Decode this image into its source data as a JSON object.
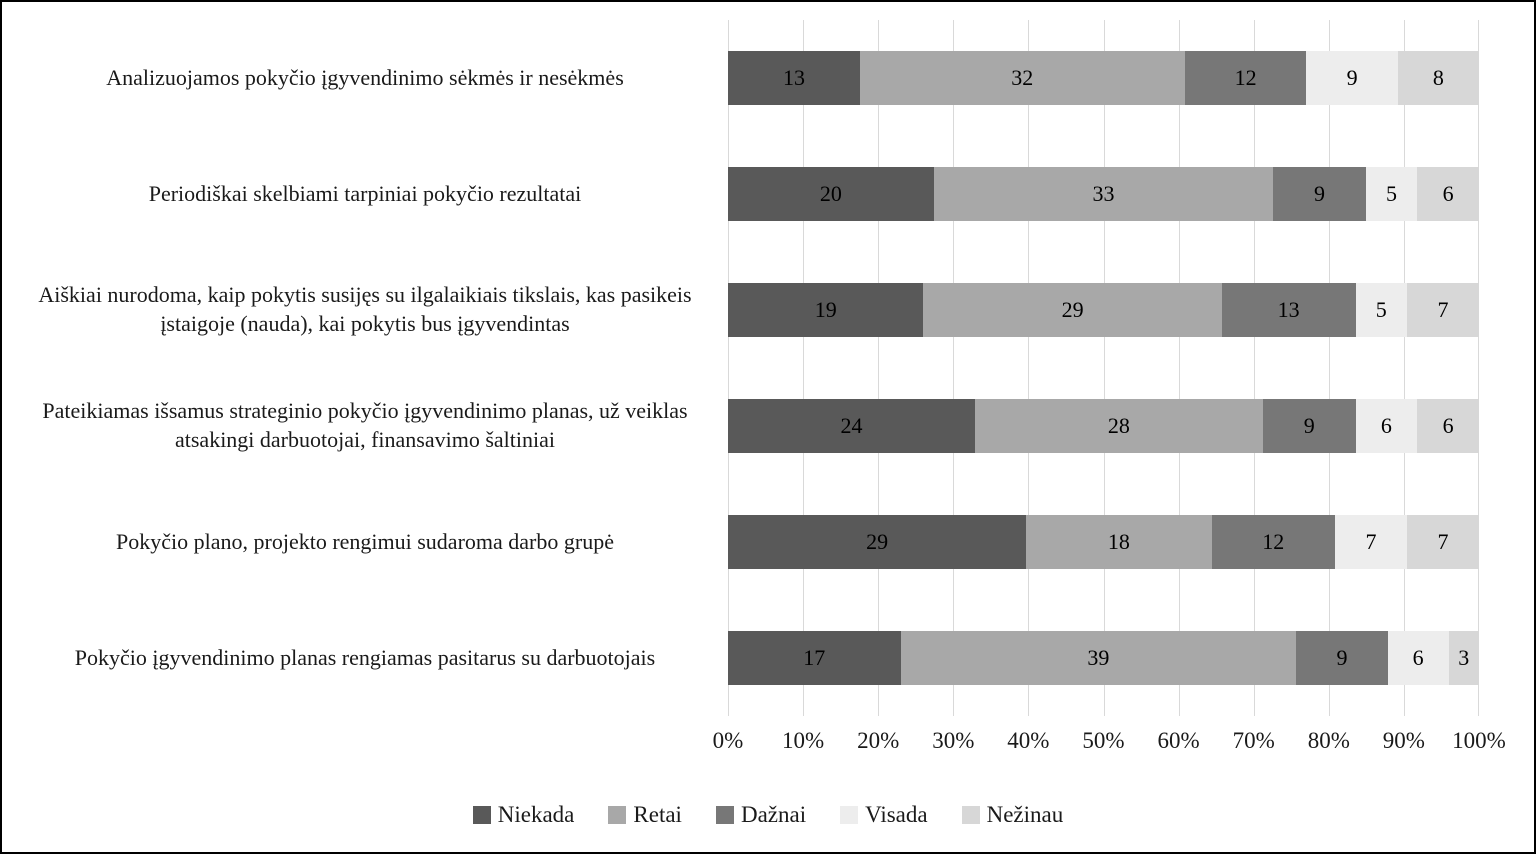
{
  "figure": {
    "background": "#ffffff",
    "border_color": "#000000"
  },
  "chart_data": {
    "type": "bar",
    "subtype": "stacked-horizontal-percent",
    "title": "",
    "xlabel": "",
    "ylabel": "",
    "xlim": [
      0,
      100
    ],
    "grid": true,
    "gridline_color": "#d9d9d9",
    "legend_position": "bottom",
    "label_color": "#000000",
    "categories": [
      "Analizuojamos pokyčio įgyvendinimo sėkmės ir nesėkmės",
      "Periodiškai skelbiami tarpiniai pokyčio rezultatai",
      "Aiškiai nurodoma, kaip pokytis susijęs su ilgalaikiais tikslais, kas pasikeis įstaigoje (nauda), kai pokytis bus įgyvendintas",
      "Pateikiamas išsamus strateginio pokyčio įgyvendinimo planas, už veiklas atsakingi darbuotojai, finansavimo šaltiniai",
      "Pokyčio plano, projekto rengimui sudaroma darbo grupė",
      "Pokyčio įgyvendinimo planas rengiamas pasitarus su darbuotojais"
    ],
    "series": [
      {
        "name": "Niekada",
        "color": "#595959",
        "values": [
          13,
          20,
          19,
          24,
          29,
          17
        ]
      },
      {
        "name": "Retai",
        "color": "#a8a8a8",
        "values": [
          32,
          33,
          29,
          28,
          18,
          39
        ]
      },
      {
        "name": "Dažnai",
        "color": "#777777",
        "values": [
          12,
          9,
          13,
          9,
          12,
          9
        ]
      },
      {
        "name": "Visada",
        "color": "#ededed",
        "values": [
          9,
          5,
          5,
          6,
          7,
          6
        ]
      },
      {
        "name": "Nežinau",
        "color": "#d7d7d7",
        "values": [
          8,
          6,
          7,
          6,
          7,
          3
        ]
      }
    ],
    "x_ticks": [
      "0%",
      "10%",
      "20%",
      "30%",
      "40%",
      "50%",
      "60%",
      "70%",
      "80%",
      "90%",
      "100%"
    ]
  }
}
